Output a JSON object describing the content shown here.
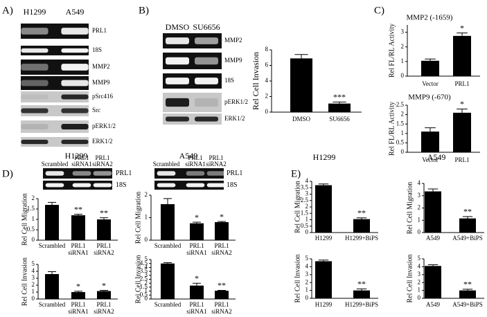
{
  "panel_labels": [
    "A)",
    "B)",
    "C)",
    "D)",
    "E)"
  ],
  "blots": [
    {
      "lanes": [
        "H1299",
        "A549"
      ],
      "rows": [
        "PRL1",
        "18S",
        "MMP2",
        "MMP9",
        "pSrc416",
        "Src",
        "pERK1/2",
        "ERK1/2"
      ]
    },
    {
      "lanes": [
        "DMSO",
        "SU6656"
      ],
      "rows": [
        "MMP2",
        "MMP9",
        "18S",
        "pERK1/2",
        "ERK1/2"
      ]
    },
    {
      "title": "H1299",
      "lanes": [
        "Scrambled",
        "PRL1 siRNA1",
        "PRL1 siRNA2"
      ],
      "rows": [
        "PRL1",
        "18S"
      ]
    },
    {
      "title": "A549",
      "lanes": [
        "Scrambled",
        "PRL1 siRNA1",
        "PRL1 siRNA2"
      ],
      "rows": [
        "PRL1",
        "18S"
      ]
    }
  ],
  "column_titles": [
    "H1299",
    "A549"
  ],
  "chart_data": [
    {
      "type": "bar",
      "ylabel": "Rel Cell Invasion",
      "categories": [
        "DMSO",
        "SU6656"
      ],
      "values": [
        6.9,
        1.1
      ],
      "errors": [
        0.5,
        0.2
      ],
      "annotations": [
        null,
        "***"
      ],
      "ylim": [
        0,
        8
      ],
      "yticks": [
        0,
        2,
        4,
        6,
        8
      ],
      "color": "#000000"
    },
    {
      "type": "bar",
      "title": "MMP2 (-1659)",
      "ylabel": "Rel FL/RL Activity",
      "categories": [
        "Vector",
        "PRL1"
      ],
      "values": [
        1.05,
        2.75
      ],
      "errors": [
        0.12,
        0.2
      ],
      "annotations": [
        null,
        "*"
      ],
      "ylim": [
        0,
        3.5
      ],
      "yticks": [
        0,
        1,
        2,
        3
      ],
      "color": "#000000"
    },
    {
      "type": "bar",
      "title": "MMP9 (-670)",
      "ylabel": "Rel FL/RL Activity",
      "categories": [
        "Vector",
        "PRL1"
      ],
      "values": [
        1.1,
        2.1
      ],
      "errors": [
        0.2,
        0.2
      ],
      "annotations": [
        null,
        "*"
      ],
      "ylim": [
        0,
        2.5
      ],
      "yticks": [
        0,
        0.5,
        1,
        1.5,
        2,
        2.5
      ],
      "color": "#000000"
    },
    {
      "type": "bar",
      "ylabel": "Rel Cell Migration",
      "categories": [
        "Scrambled",
        "PRL1 siRNA1",
        "PRL1 siRNA2"
      ],
      "values": [
        1.7,
        1.2,
        1.0
      ],
      "errors": [
        0.12,
        0.05,
        0.08
      ],
      "annotations": [
        null,
        "**",
        "**"
      ],
      "ylim": [
        0,
        2
      ],
      "yticks": [
        0,
        0.5,
        1,
        1.5,
        2
      ],
      "color": "#000000"
    },
    {
      "type": "bar",
      "ylabel": "Rel Cell Invasion",
      "categories": [
        "Scrambled",
        "PRL1 siRNA1",
        "PRL1 siRNA2"
      ],
      "values": [
        3.6,
        1.0,
        1.15
      ],
      "errors": [
        0.35,
        0.12,
        0.1
      ],
      "annotations": [
        null,
        "*",
        "*"
      ],
      "ylim": [
        0,
        5
      ],
      "yticks": [
        0,
        1,
        2,
        3,
        4,
        5
      ],
      "color": "#000000"
    },
    {
      "type": "bar",
      "ylabel": "Rel Cell Migration",
      "categories": [
        "Scrambled",
        "PRL1 siRNA1",
        "PRL1 siRNA2"
      ],
      "values": [
        1.6,
        0.75,
        0.8
      ],
      "errors": [
        0.25,
        0.05,
        0.03
      ],
      "annotations": [
        null,
        "*",
        "*"
      ],
      "ylim": [
        0,
        2
      ],
      "yticks": [
        0,
        1,
        2
      ],
      "color": "#000000"
    },
    {
      "type": "bar",
      "ylabel": "Rel Cell Invasion",
      "categories": [
        "Scrambled",
        "PRL1 siRNA1",
        "PRL1 siRNA2"
      ],
      "values": [
        4.5,
        1.7,
        1.05
      ],
      "errors": [
        0.1,
        0.3,
        0.05
      ],
      "annotations": [
        null,
        "*",
        "**"
      ],
      "ylim": [
        0,
        5
      ],
      "yticks": [
        0,
        0.5,
        1,
        1.5,
        2,
        2.5,
        3,
        3.5,
        4,
        4.5,
        5
      ],
      "color": "#000000"
    },
    {
      "type": "bar",
      "ylabel": "Rel Cell Migration",
      "categories": [
        "H1299",
        "H1299+BiPS"
      ],
      "values": [
        3.7,
        1.05
      ],
      "errors": [
        0.1,
        0.1
      ],
      "annotations": [
        null,
        "**"
      ],
      "ylim": [
        0,
        4
      ],
      "yticks": [
        0,
        0.5,
        1,
        1.5,
        2,
        2.5,
        3,
        3.5,
        4
      ],
      "color": "#000000"
    },
    {
      "type": "bar",
      "ylabel": "Rel Cell Migration",
      "categories": [
        "A549",
        "A549+BiPS"
      ],
      "values": [
        3.35,
        1.15
      ],
      "errors": [
        0.2,
        0.15
      ],
      "annotations": [
        null,
        "**"
      ],
      "ylim": [
        0,
        4
      ],
      "yticks": [
        0,
        1,
        2,
        3,
        4
      ],
      "color": "#000000"
    },
    {
      "type": "bar",
      "ylabel": "Rel Cell Invasion",
      "categories": [
        "H1299",
        "H1299+BiPS"
      ],
      "values": [
        4.7,
        1.0
      ],
      "errors": [
        0.15,
        0.2
      ],
      "annotations": [
        null,
        "**"
      ],
      "ylim": [
        0,
        5
      ],
      "yticks": [
        0,
        1,
        2,
        3,
        4,
        5
      ],
      "color": "#000000"
    },
    {
      "type": "bar",
      "ylabel": "Rel Cell Invasion",
      "categories": [
        "A549",
        "A549+BiPS"
      ],
      "values": [
        4.1,
        1.0
      ],
      "errors": [
        0.15,
        0.15
      ],
      "annotations": [
        null,
        "**"
      ],
      "ylim": [
        0,
        5
      ],
      "yticks": [
        0,
        1,
        2,
        3,
        4,
        5
      ],
      "color": "#000000"
    }
  ]
}
